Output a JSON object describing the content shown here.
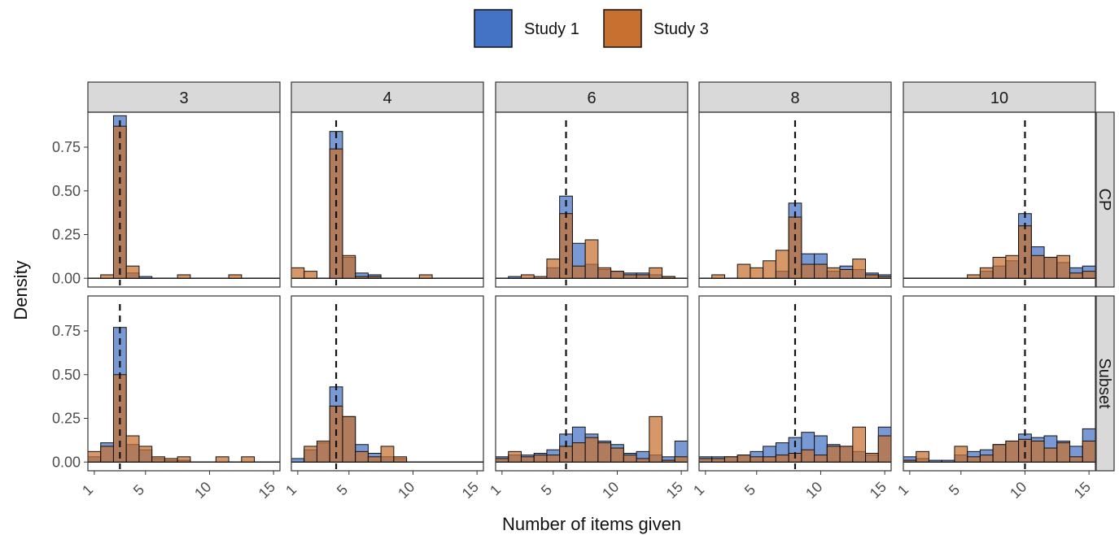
{
  "chart_data": {
    "type": "histogram-facet",
    "xlabel": "Number of items given",
    "ylabel": "Density",
    "x_ticks": [
      "1",
      "5",
      "10",
      "15"
    ],
    "y_ticks": [
      "0.00",
      "0.25",
      "0.50",
      "0.75"
    ],
    "xlim": [
      0.5,
      15.5
    ],
    "ylim": [
      -0.05,
      0.95
    ],
    "legend": {
      "position": "top",
      "items": [
        {
          "label": "Study 1",
          "color": "#4472C4"
        },
        {
          "label": "Study 3",
          "color": "#C8702F"
        }
      ]
    },
    "column_facets": [
      "3",
      "4",
      "6",
      "8",
      "10"
    ],
    "row_facets": [
      "CP",
      "Subset"
    ],
    "reference_lines": [
      3,
      4,
      6,
      8,
      10
    ],
    "panels": [
      {
        "row": "CP",
        "col": "3",
        "study1": [
          0,
          0,
          0.93,
          0.03,
          0.01,
          0,
          0,
          0,
          0,
          0,
          0,
          0,
          0,
          0,
          0
        ],
        "study3": [
          0,
          0.02,
          0.87,
          0.07,
          0,
          0,
          0,
          0.02,
          0,
          0,
          0,
          0.02,
          0,
          0,
          0
        ]
      },
      {
        "row": "CP",
        "col": "4",
        "study1": [
          0,
          0,
          0,
          0.84,
          0.12,
          0.03,
          0.02,
          0,
          0,
          0,
          0,
          0,
          0,
          0,
          0
        ],
        "study3": [
          0.06,
          0.04,
          0,
          0.74,
          0.13,
          0.01,
          0.01,
          0,
          0,
          0,
          0.02,
          0,
          0,
          0,
          0
        ]
      },
      {
        "row": "CP",
        "col": "6",
        "study1": [
          0,
          0.01,
          0,
          0,
          0.06,
          0.47,
          0.2,
          0.08,
          0.05,
          0.04,
          0.03,
          0.03,
          0.02,
          0.01,
          0
        ],
        "study3": [
          0,
          0,
          0.02,
          0.01,
          0.11,
          0.37,
          0.07,
          0.22,
          0.06,
          0.04,
          0.02,
          0.02,
          0.06,
          0.01,
          0
        ]
      },
      {
        "row": "CP",
        "col": "8",
        "study1": [
          0,
          0,
          0,
          0,
          0,
          0,
          0.04,
          0.43,
          0.14,
          0.14,
          0.04,
          0.07,
          0.05,
          0.03,
          0.02
        ],
        "study3": [
          0,
          0.02,
          0,
          0.08,
          0.06,
          0.1,
          0.16,
          0.35,
          0.08,
          0.08,
          0.06,
          0.05,
          0.11,
          0.02,
          0.01
        ]
      },
      {
        "row": "CP",
        "col": "10",
        "study1": [
          0,
          0,
          0,
          0,
          0,
          0,
          0.04,
          0.07,
          0.1,
          0.37,
          0.18,
          0.12,
          0.09,
          0.06,
          0.07
        ],
        "study3": [
          0,
          0,
          0,
          0,
          0,
          0.02,
          0.06,
          0.12,
          0.13,
          0.3,
          0.13,
          0.12,
          0.13,
          0.03,
          0.04
        ]
      },
      {
        "row": "Subset",
        "col": "3",
        "study1": [
          0.03,
          0.11,
          0.77,
          0.1,
          0.07,
          0.02,
          0.01,
          0.01,
          0,
          0,
          0,
          0,
          0,
          0,
          0
        ],
        "study3": [
          0.06,
          0.09,
          0.5,
          0.15,
          0.09,
          0.03,
          0.02,
          0.03,
          0,
          0,
          0.03,
          0,
          0.03,
          0,
          0
        ]
      },
      {
        "row": "Subset",
        "col": "4",
        "study1": [
          0.02,
          0.07,
          0.11,
          0.43,
          0.26,
          0.1,
          0.05,
          0.03,
          0.02,
          0,
          0,
          0,
          0,
          0,
          0
        ],
        "study3": [
          0,
          0.09,
          0.12,
          0.32,
          0.26,
          0.06,
          0.03,
          0.09,
          0.03,
          0,
          0,
          0,
          0,
          0,
          0
        ]
      },
      {
        "row": "Subset",
        "col": "6",
        "study1": [
          0.03,
          0.04,
          0.04,
          0.05,
          0.07,
          0.16,
          0.2,
          0.16,
          0.12,
          0.1,
          0.05,
          0.06,
          0.04,
          0.03,
          0.12
        ],
        "study3": [
          0.02,
          0.06,
          0.03,
          0.04,
          0.04,
          0.09,
          0.11,
          0.14,
          0.11,
          0.08,
          0.04,
          0.02,
          0.26,
          0.01,
          0.03
        ]
      },
      {
        "row": "Subset",
        "col": "8",
        "study1": [
          0.03,
          0.03,
          0.03,
          0.04,
          0.06,
          0.09,
          0.11,
          0.14,
          0.17,
          0.15,
          0.1,
          0.09,
          0.06,
          0.04,
          0.2
        ],
        "study3": [
          0.02,
          0.02,
          0.03,
          0.04,
          0.03,
          0.03,
          0.04,
          0.05,
          0.07,
          0.04,
          0.09,
          0.09,
          0.2,
          0.05,
          0.15
        ]
      },
      {
        "row": "Subset",
        "col": "10",
        "study1": [
          0.03,
          0.02,
          0.01,
          0.01,
          0.04,
          0.06,
          0.07,
          0.1,
          0.12,
          0.16,
          0.14,
          0.15,
          0.12,
          0.09,
          0.19
        ],
        "study3": [
          0.01,
          0.06,
          0,
          0,
          0.09,
          0.03,
          0.04,
          0.1,
          0.12,
          0.13,
          0.12,
          0.08,
          0.11,
          0.03,
          0.12
        ]
      }
    ]
  }
}
